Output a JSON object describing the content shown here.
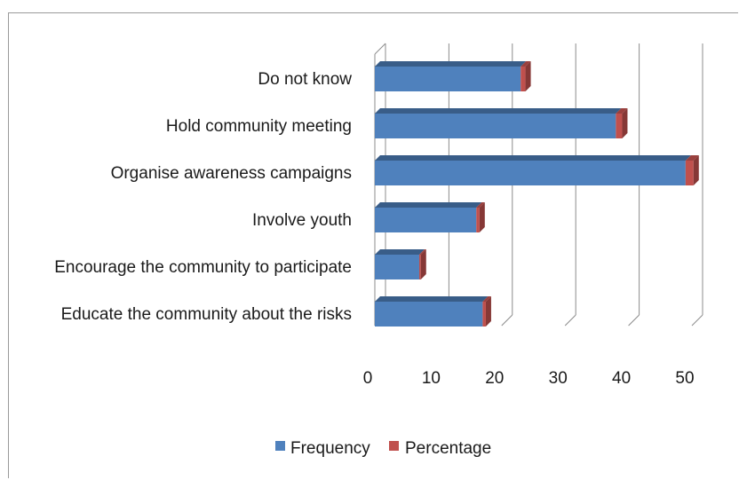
{
  "chart_data": {
    "type": "bar",
    "orientation": "horizontal",
    "style": "3d",
    "categories": [
      "Do not know",
      "Hold community meeting",
      "Organise awareness campaigns",
      "Involve youth",
      "Encourage the community to participate",
      "Educate the community about the risks"
    ],
    "series": [
      {
        "name": "Frequency",
        "values": [
          23,
          38,
          49,
          16,
          7,
          17
        ],
        "color": "#4f81bd"
      },
      {
        "name": "Percentage",
        "values": [
          0.3,
          0.4,
          0.5,
          0.2,
          0.1,
          0.2
        ],
        "color": "#c0504d"
      }
    ],
    "xlim": [
      0,
      50
    ],
    "xticks": [
      "0",
      "10",
      "20",
      "30",
      "40",
      "50"
    ],
    "grid": true,
    "legend": "bottom"
  }
}
